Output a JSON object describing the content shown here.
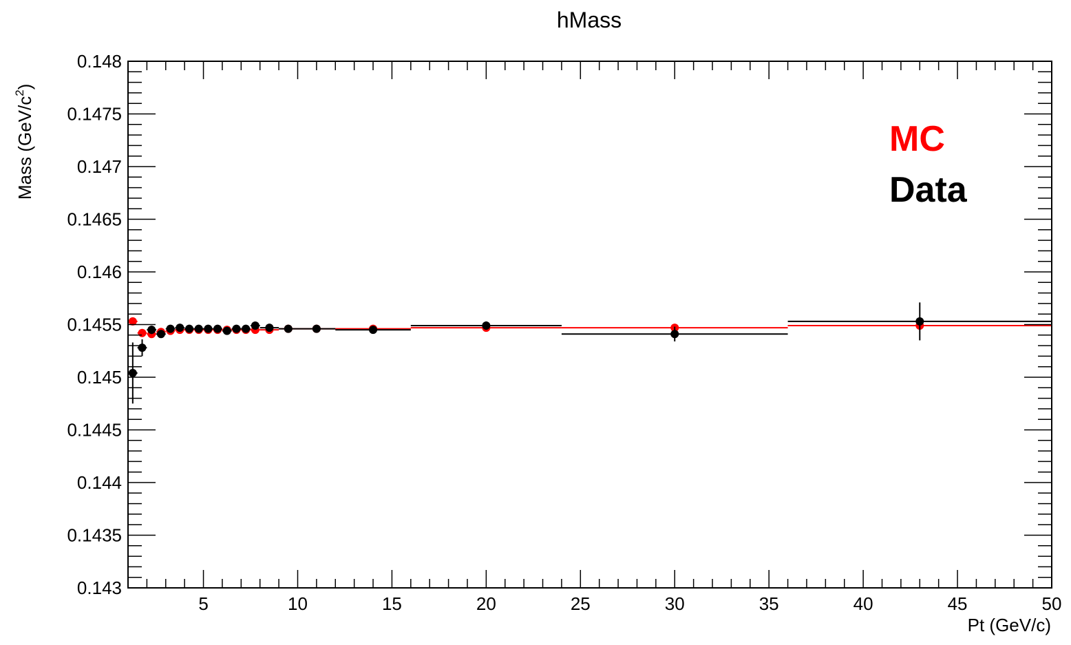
{
  "chart_data": {
    "type": "scatter",
    "title": "hMass",
    "xlabel": "Pt (GeV/c)",
    "ylabel_main": "Mass (GeV/c",
    "ylabel_sup": "2",
    "ylabel_close": ")",
    "xlim": [
      1,
      50
    ],
    "ylim": [
      0.143,
      0.148
    ],
    "x_ticks": [
      5,
      10,
      15,
      20,
      25,
      30,
      35,
      40,
      45,
      50
    ],
    "x_tick_labels": [
      "5",
      "10",
      "15",
      "20",
      "25",
      "30",
      "35",
      "40",
      "45",
      "50"
    ],
    "y_ticks": [
      0.143,
      0.1435,
      0.144,
      0.1445,
      0.145,
      0.1455,
      0.146,
      0.1465,
      0.147,
      0.1475,
      0.148
    ],
    "y_tick_labels": [
      "0.143",
      "0.1435",
      "0.144",
      "0.1445",
      "0.145",
      "0.1455",
      "0.146",
      "0.1465",
      "0.147",
      "0.1475",
      "0.148"
    ],
    "legend": {
      "placement": "top-right"
    },
    "series": [
      {
        "name": "MC",
        "color": "#ff0000",
        "points": [
          {
            "x": 1.25,
            "y": 0.14553,
            "xlo": 1.0,
            "xhi": 1.5,
            "yerr": 1e-05
          },
          {
            "x": 1.75,
            "y": 0.14542,
            "xlo": 1.5,
            "xhi": 2.0,
            "yerr": 1e-05
          },
          {
            "x": 2.25,
            "y": 0.14541,
            "xlo": 2.0,
            "xhi": 2.5,
            "yerr": 1e-05
          },
          {
            "x": 2.75,
            "y": 0.14543,
            "xlo": 2.5,
            "xhi": 3.0,
            "yerr": 1e-05
          },
          {
            "x": 3.25,
            "y": 0.14544,
            "xlo": 3.0,
            "xhi": 3.5,
            "yerr": 1e-05
          },
          {
            "x": 3.75,
            "y": 0.14545,
            "xlo": 3.5,
            "xhi": 4.0,
            "yerr": 1e-05
          },
          {
            "x": 4.25,
            "y": 0.14545,
            "xlo": 4.0,
            "xhi": 4.5,
            "yerr": 1e-05
          },
          {
            "x": 4.75,
            "y": 0.14545,
            "xlo": 4.5,
            "xhi": 5.0,
            "yerr": 1e-05
          },
          {
            "x": 5.25,
            "y": 0.14545,
            "xlo": 5.0,
            "xhi": 5.5,
            "yerr": 1e-05
          },
          {
            "x": 5.75,
            "y": 0.14545,
            "xlo": 5.5,
            "xhi": 6.0,
            "yerr": 1e-05
          },
          {
            "x": 6.25,
            "y": 0.14545,
            "xlo": 6.0,
            "xhi": 6.5,
            "yerr": 1e-05
          },
          {
            "x": 6.75,
            "y": 0.14545,
            "xlo": 6.5,
            "xhi": 7.0,
            "yerr": 1e-05
          },
          {
            "x": 7.25,
            "y": 0.14545,
            "xlo": 7.0,
            "xhi": 7.5,
            "yerr": 1e-05
          },
          {
            "x": 7.75,
            "y": 0.14545,
            "xlo": 7.5,
            "xhi": 8.0,
            "yerr": 1e-05
          },
          {
            "x": 8.5,
            "y": 0.14545,
            "xlo": 8.0,
            "xhi": 9.0,
            "yerr": 1e-05
          },
          {
            "x": 9.5,
            "y": 0.14546,
            "xlo": 9.0,
            "xhi": 10.0,
            "yerr": 1e-05
          },
          {
            "x": 11.0,
            "y": 0.14546,
            "xlo": 10.0,
            "xhi": 12.0,
            "yerr": 1e-05
          },
          {
            "x": 14.0,
            "y": 0.14546,
            "xlo": 12.0,
            "xhi": 16.0,
            "yerr": 1e-05
          },
          {
            "x": 20.0,
            "y": 0.14547,
            "xlo": 16.0,
            "xhi": 24.0,
            "yerr": 1e-05
          },
          {
            "x": 30.0,
            "y": 0.14547,
            "xlo": 24.0,
            "xhi": 36.0,
            "yerr": 2e-05
          },
          {
            "x": 43.0,
            "y": 0.14549,
            "xlo": 36.0,
            "xhi": 50.0,
            "yerr": 4e-05
          }
        ]
      },
      {
        "name": "Data",
        "color": "#000000",
        "points": [
          {
            "x": 1.25,
            "y": 0.14504,
            "xlo": 1.0,
            "xhi": 1.5,
            "yerr": 0.00029
          },
          {
            "x": 1.75,
            "y": 0.14528,
            "xlo": 1.5,
            "xhi": 2.0,
            "yerr": 8e-05
          },
          {
            "x": 2.25,
            "y": 0.14545,
            "xlo": 2.0,
            "xhi": 2.5,
            "yerr": 4e-05
          },
          {
            "x": 2.75,
            "y": 0.14541,
            "xlo": 2.5,
            "xhi": 3.0,
            "yerr": 3e-05
          },
          {
            "x": 3.25,
            "y": 0.14546,
            "xlo": 3.0,
            "xhi": 3.5,
            "yerr": 2e-05
          },
          {
            "x": 3.75,
            "y": 0.14547,
            "xlo": 3.5,
            "xhi": 4.0,
            "yerr": 2e-05
          },
          {
            "x": 4.25,
            "y": 0.14546,
            "xlo": 4.0,
            "xhi": 4.5,
            "yerr": 2e-05
          },
          {
            "x": 4.75,
            "y": 0.14546,
            "xlo": 4.5,
            "xhi": 5.0,
            "yerr": 2e-05
          },
          {
            "x": 5.25,
            "y": 0.14546,
            "xlo": 5.0,
            "xhi": 5.5,
            "yerr": 2e-05
          },
          {
            "x": 5.75,
            "y": 0.14546,
            "xlo": 5.5,
            "xhi": 6.0,
            "yerr": 2e-05
          },
          {
            "x": 6.25,
            "y": 0.14544,
            "xlo": 6.0,
            "xhi": 6.5,
            "yerr": 2e-05
          },
          {
            "x": 6.75,
            "y": 0.14546,
            "xlo": 6.5,
            "xhi": 7.0,
            "yerr": 2e-05
          },
          {
            "x": 7.25,
            "y": 0.14546,
            "xlo": 7.0,
            "xhi": 7.5,
            "yerr": 2e-05
          },
          {
            "x": 7.75,
            "y": 0.14549,
            "xlo": 7.5,
            "xhi": 8.0,
            "yerr": 2e-05
          },
          {
            "x": 8.5,
            "y": 0.14547,
            "xlo": 8.0,
            "xhi": 9.0,
            "yerr": 2e-05
          },
          {
            "x": 9.5,
            "y": 0.14546,
            "xlo": 9.0,
            "xhi": 10.0,
            "yerr": 2e-05
          },
          {
            "x": 11.0,
            "y": 0.14546,
            "xlo": 10.0,
            "xhi": 12.0,
            "yerr": 2e-05
          },
          {
            "x": 14.0,
            "y": 0.14545,
            "xlo": 12.0,
            "xhi": 16.0,
            "yerr": 3e-05
          },
          {
            "x": 20.0,
            "y": 0.14549,
            "xlo": 16.0,
            "xhi": 24.0,
            "yerr": 4e-05
          },
          {
            "x": 30.0,
            "y": 0.14541,
            "xlo": 24.0,
            "xhi": 36.0,
            "yerr": 7e-05
          },
          {
            "x": 43.0,
            "y": 0.14553,
            "xlo": 36.0,
            "xhi": 50.0,
            "yerr": 0.00018
          }
        ]
      }
    ]
  }
}
